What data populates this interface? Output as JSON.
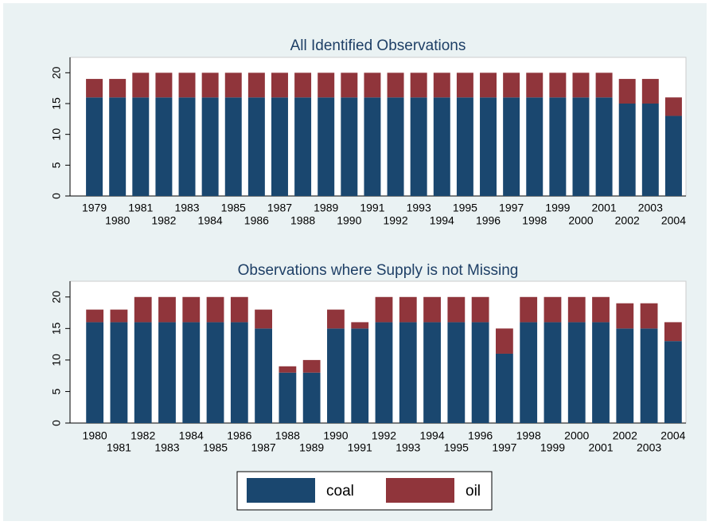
{
  "chart_data": [
    {
      "type": "bar",
      "stacked": true,
      "title": "All Identified Observations",
      "categories": [
        "1979",
        "1980",
        "1981",
        "1982",
        "1983",
        "1984",
        "1985",
        "1986",
        "1987",
        "1988",
        "1989",
        "1990",
        "1991",
        "1992",
        "1993",
        "1994",
        "1995",
        "1996",
        "1997",
        "1998",
        "1999",
        "2000",
        "2001",
        "2002",
        "2003",
        "2004"
      ],
      "series": [
        {
          "name": "coal",
          "color": "#1a476f",
          "values": [
            16,
            16,
            16,
            16,
            16,
            16,
            16,
            16,
            16,
            16,
            16,
            16,
            16,
            16,
            16,
            16,
            16,
            16,
            16,
            16,
            16,
            16,
            16,
            15,
            15,
            13
          ]
        },
        {
          "name": "oil",
          "color": "#90353b",
          "values": [
            3,
            3,
            4,
            4,
            4,
            4,
            4,
            4,
            4,
            4,
            4,
            4,
            4,
            4,
            4,
            4,
            4,
            4,
            4,
            4,
            4,
            4,
            4,
            4,
            4,
            3
          ]
        }
      ],
      "ylim": [
        0,
        22.5
      ],
      "yticks": [
        0,
        5,
        10,
        15,
        20
      ],
      "grid": false,
      "legend": "bottom"
    },
    {
      "type": "bar",
      "stacked": true,
      "title": "Observations where Supply is not Missing",
      "categories": [
        "1980",
        "1981",
        "1982",
        "1983",
        "1984",
        "1985",
        "1986",
        "1987",
        "1988",
        "1989",
        "1990",
        "1991",
        "1992",
        "1993",
        "1994",
        "1995",
        "1996",
        "1997",
        "1998",
        "1999",
        "2000",
        "2001",
        "2002",
        "2003",
        "2004"
      ],
      "series": [
        {
          "color": "#1a476f",
          "values": [
            16,
            16,
            16,
            16,
            16,
            16,
            16,
            15,
            8,
            8,
            15,
            15,
            16,
            16,
            16,
            16,
            16,
            11,
            16,
            16,
            16,
            16,
            15,
            15,
            13
          ]
        },
        {
          "color": "#90353b",
          "values": [
            2,
            2,
            4,
            4,
            4,
            4,
            4,
            3,
            1,
            2,
            3,
            1,
            4,
            4,
            4,
            4,
            4,
            4,
            4,
            4,
            4,
            4,
            4,
            4,
            3
          ]
        }
      ],
      "ylim": [
        0,
        22.5
      ],
      "yticks": [
        0,
        5,
        10,
        15,
        20
      ],
      "grid": false
    }
  ]
}
